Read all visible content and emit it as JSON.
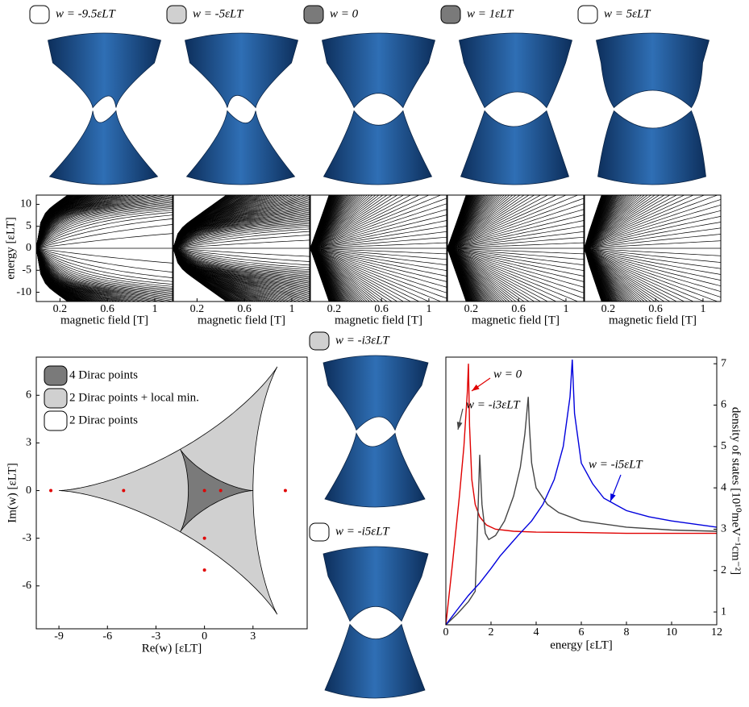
{
  "chart_data": [
    {
      "type": "fan",
      "label": "w = -9.5εLT",
      "swatch_color": "#ffffff",
      "xlabel": "magnetic field [T]",
      "ylabel": "energy [εLT]",
      "xlim": [
        0,
        1.15
      ],
      "ylim": [
        -12.1,
        12.1
      ],
      "xticks": [
        0.2,
        0.6,
        1
      ],
      "yticks": [
        -10,
        -5,
        0,
        5,
        10
      ]
    },
    {
      "type": "fan",
      "label": "w = -5εLT",
      "swatch_color": "#d0d0d0",
      "xlabel": "magnetic field [T]",
      "xlim": [
        0,
        1.15
      ],
      "ylim": [
        -12.1,
        12.1
      ],
      "xticks": [
        0.2,
        0.6,
        1
      ]
    },
    {
      "type": "fan",
      "label": "w = 0",
      "swatch_color": "#7a7a7a",
      "xlabel": "magnetic field [T]",
      "xlim": [
        0,
        1.15
      ],
      "ylim": [
        -12.1,
        12.1
      ],
      "xticks": [
        0.2,
        0.6,
        1
      ]
    },
    {
      "type": "fan",
      "label": "w = 1εLT",
      "swatch_color": "#7a7a7a",
      "xlabel": "magnetic field [T]",
      "xlim": [
        0,
        1.15
      ],
      "ylim": [
        -12.1,
        12.1
      ],
      "xticks": [
        0.2,
        0.6,
        1
      ]
    },
    {
      "type": "fan",
      "label": "w = 5εLT",
      "swatch_color": "#ffffff",
      "xlabel": "magnetic field [T]",
      "xlim": [
        0,
        1.15
      ],
      "ylim": [
        -12.1,
        12.1
      ],
      "xticks": [
        0.2,
        0.6,
        1
      ]
    },
    {
      "type": "phase",
      "xlabel": "Re(w) [εLT]",
      "ylabel": "Im(w) [εLT]",
      "xlim": [
        -10.4,
        6.35
      ],
      "ylim": [
        -8.7,
        8.4
      ],
      "xticks": [
        -9,
        -6,
        -3,
        0,
        3
      ],
      "yticks": [
        -6,
        -3,
        0,
        3,
        6
      ],
      "series": [
        {
          "name": "4 Dirac points",
          "color": "#7a7a7a",
          "cusp": 3
        },
        {
          "name": "2 Dirac points + local min.",
          "color": "#d0d0d0",
          "cusp": -9
        },
        {
          "name": "2 Dirac points",
          "color": "#ffffff"
        }
      ],
      "points": {
        "color": "#e00000",
        "x": [
          -9.5,
          -5,
          0,
          1,
          5,
          0,
          0
        ],
        "y": [
          0,
          0,
          0,
          0,
          0,
          -3,
          -5
        ]
      }
    },
    {
      "type": "line",
      "xlabel": "energy [εLT]",
      "ylabel": "density of states [10¹⁰meV⁻¹cm⁻²]",
      "xlim": [
        0,
        12
      ],
      "ylim": [
        0.69,
        7.16
      ],
      "xticks": [
        0,
        2,
        4,
        6,
        8,
        10,
        12
      ],
      "yticks": [
        1,
        2,
        3,
        4,
        5,
        6,
        7
      ],
      "series": [
        {
          "name": "w = 0",
          "color": "#e00000",
          "x": [
            0,
            0.3,
            0.6,
            0.8,
            0.95,
            1.0,
            1.05,
            1.15,
            1.3,
            1.5,
            1.8,
            2.2,
            3,
            4,
            6,
            8,
            10,
            12
          ],
          "values": [
            0.69,
            2.2,
            3.8,
            5.0,
            6.3,
            7.0,
            5.5,
            4.2,
            3.6,
            3.3,
            3.1,
            3.0,
            2.95,
            2.93,
            2.92,
            2.9,
            2.9,
            2.9
          ]
        },
        {
          "name": "w = -i3εLT",
          "color": "#444444",
          "x": [
            0,
            0.5,
            1,
            1.3,
            1.4,
            1.5,
            1.6,
            1.75,
            1.9,
            2.2,
            2.6,
            3,
            3.3,
            3.5,
            3.65,
            3.7,
            3.8,
            4,
            4.5,
            5,
            6,
            8,
            10,
            12
          ],
          "values": [
            0.69,
            0.95,
            1.25,
            1.5,
            3.0,
            4.8,
            3.6,
            2.9,
            2.75,
            2.85,
            3.2,
            3.8,
            4.5,
            5.3,
            6.2,
            5.5,
            4.6,
            4.0,
            3.6,
            3.4,
            3.2,
            3.05,
            2.98,
            2.95
          ]
        },
        {
          "name": "w = -i5εLT",
          "color": "#0000dd",
          "x": [
            0,
            0.5,
            1,
            1.5,
            2,
            2.4,
            2.8,
            3.2,
            3.8,
            4.3,
            4.8,
            5.2,
            5.5,
            5.6,
            5.7,
            6,
            6.5,
            7,
            8,
            9,
            10,
            12
          ],
          "values": [
            0.69,
            1.05,
            1.4,
            1.7,
            2.05,
            2.35,
            2.6,
            2.85,
            3.2,
            3.6,
            4.2,
            5.0,
            6.2,
            7.1,
            5.8,
            4.6,
            4.1,
            3.75,
            3.45,
            3.3,
            3.2,
            3.05
          ]
        }
      ]
    },
    {
      "type": "surface",
      "label": "w = -i3εLT",
      "swatch_color": "#d0d0d0"
    },
    {
      "type": "surface",
      "label": "w = -i5εLT",
      "swatch_color": "#ffffff"
    }
  ]
}
